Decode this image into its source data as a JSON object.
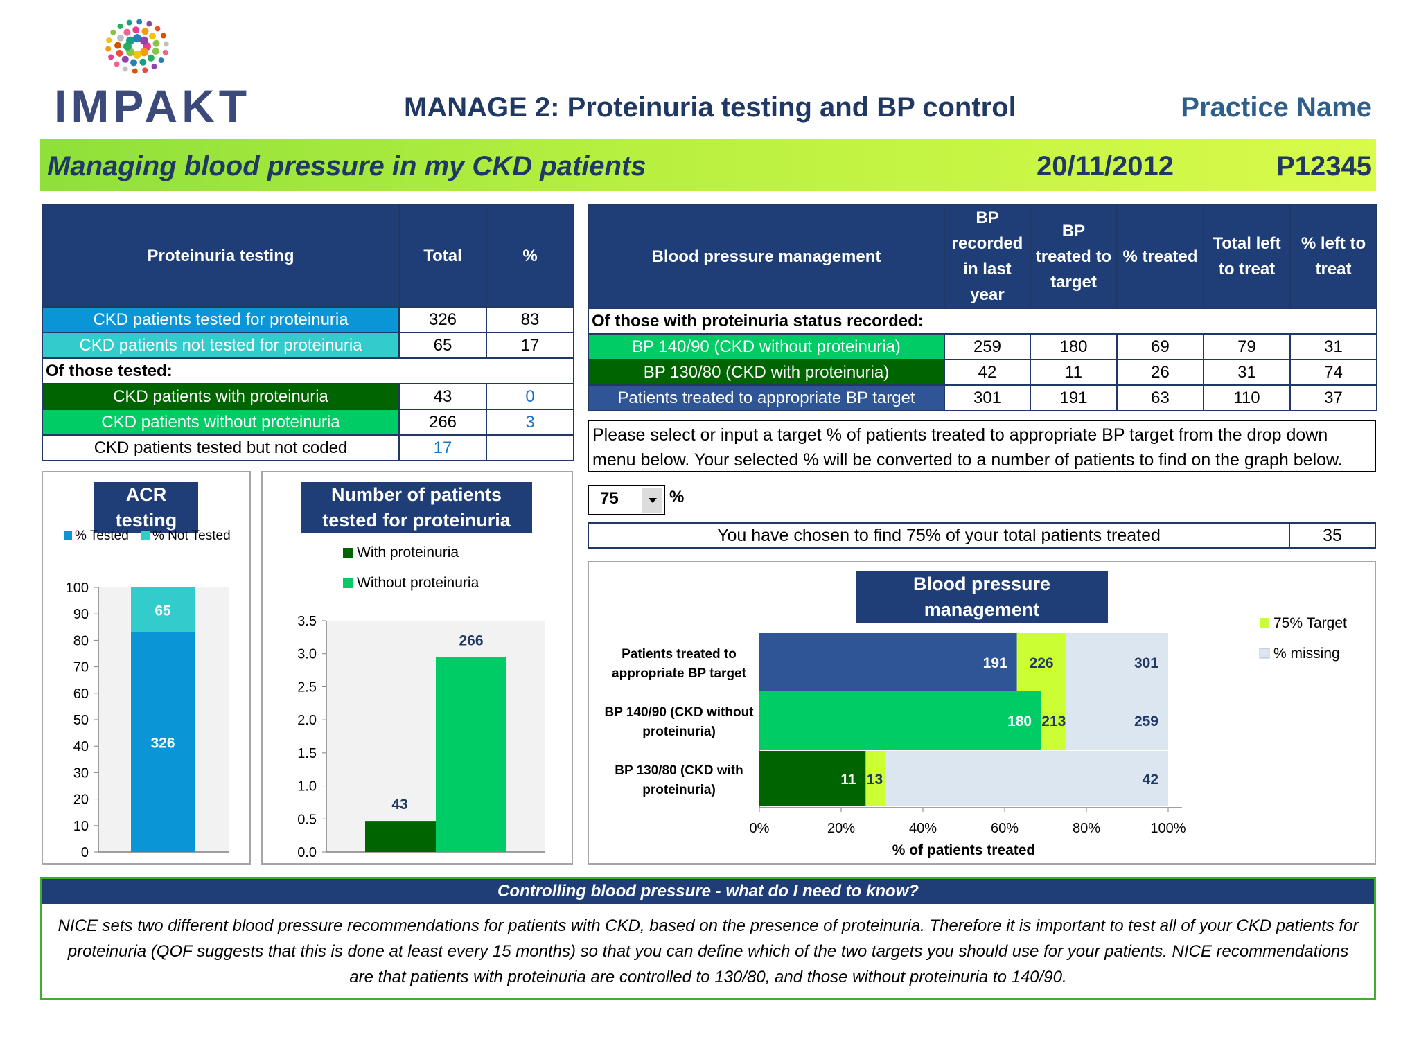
{
  "header": {
    "logo_text": "IMPAKT",
    "report_title": "MANAGE 2: Proteinuria testing and BP control",
    "practice_name": "Practice Name"
  },
  "banner": {
    "title": "Managing blood pressure in my CKD patients",
    "date": "20/11/2012",
    "practice_id": "P12345"
  },
  "proteinuria_table": {
    "headers": [
      "Proteinuria testing",
      "Total",
      "%"
    ],
    "rows": [
      {
        "label": "CKD patients tested for proteinuria",
        "total": "326",
        "pct": "83"
      },
      {
        "label": "CKD patients not tested for proteinuria",
        "total": "65",
        "pct": "17"
      },
      {
        "section": "Of those tested:"
      },
      {
        "label": "CKD patients with proteinuria",
        "total": "43",
        "pct": "0"
      },
      {
        "label": "CKD patients without proteinuria",
        "total": "266",
        "pct": "3"
      },
      {
        "label": "CKD patients tested but not coded",
        "total": "17",
        "pct": ""
      }
    ]
  },
  "bp_table": {
    "headers": [
      "Blood pressure management",
      "BP recorded in last year",
      "BP treated to target",
      "% treated",
      "Total left to treat",
      "% left to treat"
    ],
    "section": "Of those with proteinuria status recorded:",
    "rows": [
      {
        "label": "BP 140/90 (CKD without proteinuria)",
        "recorded": "259",
        "treated": "180",
        "pct_treated": "69",
        "left": "79",
        "pct_left": "31"
      },
      {
        "label": "BP 130/80 (CKD with proteinuria)",
        "recorded": "42",
        "treated": "11",
        "pct_treated": "26",
        "left": "31",
        "pct_left": "74"
      },
      {
        "label": "Patients treated to appropriate BP target",
        "recorded": "301",
        "treated": "191",
        "pct_treated": "63",
        "left": "110",
        "pct_left": "37"
      }
    ]
  },
  "target": {
    "instruction": "Please select or input a target % of patients treated to appropriate BP target from the drop down menu below. Your selected % will be converted to a number of patients to find on the graph below.",
    "selected": "75",
    "pct_sign": "%",
    "chosen_text": "You have chosen to find 75% of your total patients treated",
    "chosen_value": "35"
  },
  "info": {
    "heading": "Controlling blood pressure - what do I need to know?",
    "body": "NICE sets two different blood pressure recommendations for patients with CKD, based on the presence of proteinuria. Therefore it is important to test all of your CKD patients for proteinuria (QOF suggests that this is done at least every 15 months) so that you can define which of the two targets you should use for your patients. NICE recommendations are that patients with proteinuria are controlled to 130/80, and those without proteinuria to 140/90."
  },
  "colors": {
    "navy": "#1f3e78",
    "tested_blue": "#0a96d6",
    "not_tested_teal": "#33cccc",
    "with_proteinuria": "#006400",
    "without_proteinuria": "#00cc66",
    "bp_navy_bar": "#2f5597",
    "target_lime": "#ccff33",
    "missing": "#dce6f1"
  },
  "chart_data": [
    {
      "type": "bar",
      "stacked": true,
      "title": "ACR testing",
      "legend": [
        "% Tested",
        "% Not Tested"
      ],
      "legend_position": "top",
      "categories": [
        ""
      ],
      "series": [
        {
          "name": "% Tested",
          "values": [
            83
          ],
          "label": "326"
        },
        {
          "name": "% Not Tested",
          "values": [
            17
          ],
          "label": "65"
        }
      ],
      "ylim": [
        0,
        100
      ],
      "yticks": [
        "0",
        "10",
        "20",
        "30",
        "40",
        "50",
        "60",
        "70",
        "80",
        "90",
        "100"
      ]
    },
    {
      "type": "bar",
      "title": "Number of patients tested for proteinuria",
      "legend": [
        "With proteinuria",
        "Without proteinuria"
      ],
      "legend_position": "top",
      "categories": [
        "With proteinuria",
        "Without proteinuria"
      ],
      "values": [
        0.47,
        2.95
      ],
      "labels": [
        "43",
        "266"
      ],
      "ylim": [
        0,
        3.5
      ],
      "yticks": [
        "0.0",
        "0.5",
        "1.0",
        "1.5",
        "2.0",
        "2.5",
        "3.0",
        "3.5"
      ]
    },
    {
      "type": "bar",
      "orientation": "horizontal",
      "stacked": true,
      "title": "Blood pressure management",
      "xlabel": "% of patients treated",
      "xlim": [
        0,
        100
      ],
      "xticks": [
        "0%",
        "20%",
        "40%",
        "60%",
        "80%",
        "100%"
      ],
      "legend": [
        "75% Target",
        "% missing"
      ],
      "legend_position": "right",
      "categories": [
        "Patients treated to appropriate BP target",
        "BP 140/90 (CKD without proteinuria)",
        "BP 130/80 (CKD with proteinuria)"
      ],
      "category_lines": [
        [
          "Patients treated to",
          "appropriate BP target"
        ],
        [
          "BP 140/90 (CKD without",
          "proteinuria)"
        ],
        [
          "BP 130/80 (CKD with",
          "proteinuria)"
        ]
      ],
      "series": [
        {
          "values": [
            63,
            69,
            26
          ],
          "labels": [
            "191",
            "180",
            "11"
          ]
        },
        {
          "name": "75% Target",
          "values": [
            12,
            6,
            5
          ],
          "labels": [
            "226",
            "213",
            "13"
          ]
        },
        {
          "name": "% missing",
          "values": [
            25,
            25,
            69
          ],
          "labels": [
            "301",
            "259",
            "42"
          ]
        }
      ]
    }
  ]
}
